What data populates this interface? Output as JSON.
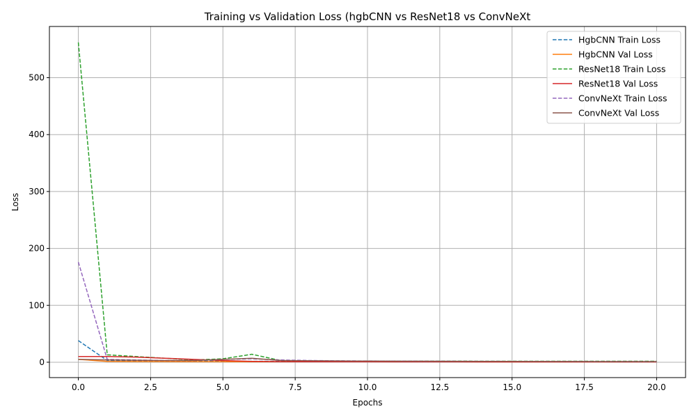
{
  "chart_data": {
    "type": "line",
    "title": "Training vs Validation Loss (hgbCNN vs ResNet18 vs ConvNeXt",
    "xlabel": "Epochs",
    "ylabel": "Loss",
    "xlim": [
      -1.0,
      21.0
    ],
    "ylim": [
      -27.0,
      590.0
    ],
    "xticks": [
      0.0,
      2.5,
      5.0,
      7.5,
      10.0,
      12.5,
      15.0,
      17.5,
      20.0
    ],
    "xtick_labels": [
      "0.0",
      "2.5",
      "5.0",
      "7.5",
      "10.0",
      "12.5",
      "15.0",
      "17.5",
      "20.0"
    ],
    "yticks": [
      0,
      100,
      200,
      300,
      400,
      500
    ],
    "ytick_labels": [
      "0",
      "100",
      "200",
      "300",
      "400",
      "500"
    ],
    "grid": true,
    "legend_position": "top-right",
    "x": [
      0,
      1,
      2,
      3,
      4,
      5,
      6,
      7,
      8,
      9,
      10,
      11,
      12,
      13,
      14,
      15,
      16,
      17,
      18,
      19,
      20
    ],
    "series": [
      {
        "name": "HgbCNN Train Loss",
        "color": "#1f77b4",
        "dash": true,
        "values": [
          38,
          3,
          2.5,
          2.2,
          2,
          1.8,
          1.6,
          1.5,
          1.4,
          1.3,
          1.2,
          1.1,
          1.0,
          1.0,
          0.9,
          0.9,
          0.8,
          0.8,
          0.8,
          0.7,
          0.7
        ]
      },
      {
        "name": "HgbCNN Val Loss",
        "color": "#ff7f0e",
        "dash": false,
        "values": [
          5,
          1.5,
          1.2,
          1.1,
          1.0,
          1.0,
          0.9,
          0.9,
          0.9,
          0.8,
          0.8,
          0.8,
          0.8,
          0.8,
          0.7,
          0.7,
          0.7,
          0.7,
          0.7,
          0.7,
          0.7
        ]
      },
      {
        "name": "ResNet18 Train Loss",
        "color": "#2ca02c",
        "dash": true,
        "values": [
          562,
          13,
          10,
          7,
          4,
          6,
          14,
          3,
          2.5,
          2.2,
          2,
          2,
          1.9,
          1.9,
          1.8,
          1.8,
          1.8,
          1.8,
          1.8,
          1.8,
          1.8
        ]
      },
      {
        "name": "ResNet18 Val Loss",
        "color": "#d62728",
        "dash": false,
        "values": [
          10,
          10,
          9,
          7,
          5,
          3,
          1.5,
          1.0,
          0.9,
          0.8,
          0.8,
          0.7,
          0.7,
          0.7,
          0.6,
          0.6,
          0.6,
          0.6,
          0.6,
          0.6,
          0.6
        ]
      },
      {
        "name": "ConvNeXt Train Loss",
        "color": "#9467bd",
        "dash": true,
        "values": [
          176,
          5,
          4,
          3,
          3,
          5,
          6,
          4,
          3,
          2.5,
          2.2,
          2,
          1.8,
          1.7,
          1.6,
          1.5,
          1.4,
          1.3,
          1.2,
          1.1,
          1.0
        ]
      },
      {
        "name": "ConvNeXt Val Loss",
        "color": "#8c564b",
        "dash": false,
        "values": [
          5,
          4,
          3.5,
          3,
          3,
          5,
          7,
          3,
          2.5,
          2.2,
          2,
          1.8,
          1.7,
          1.6,
          1.5,
          1.4,
          1.3,
          1.3,
          1.2,
          1.2,
          1.1
        ]
      }
    ]
  }
}
